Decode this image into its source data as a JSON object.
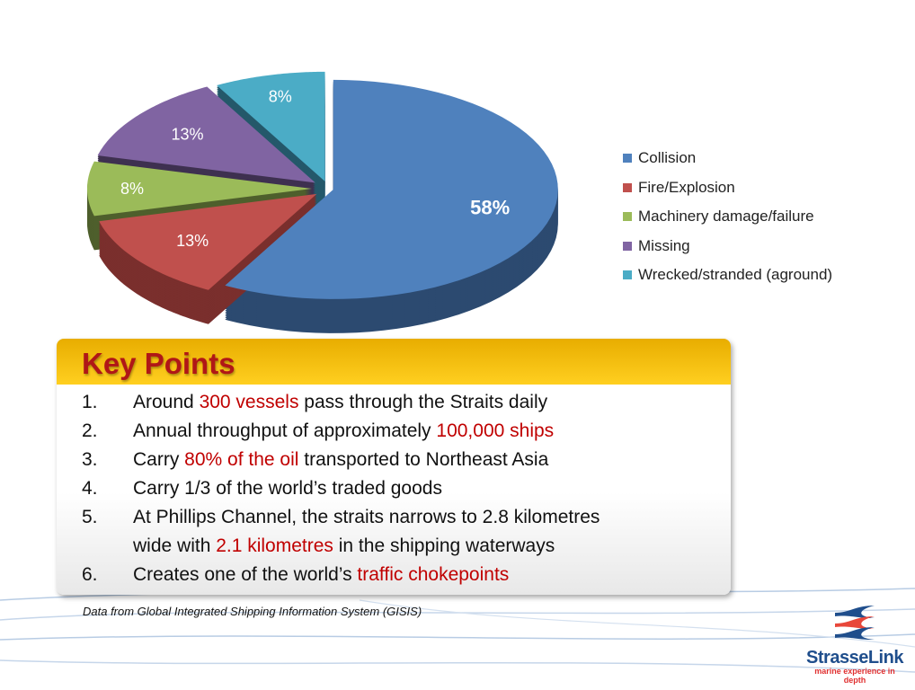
{
  "chart_data": {
    "type": "pie",
    "style": "3d-exploded",
    "categories": [
      "Collision",
      "Fire/Explosion",
      "Machinery damage/failure",
      "Missing",
      "Wrecked/stranded (aground)"
    ],
    "values": [
      58,
      13,
      8,
      13,
      8
    ],
    "labels": [
      "58%",
      "13%",
      "8%",
      "13%",
      "8%"
    ],
    "colors": [
      "#4f81bd",
      "#c0504d",
      "#9bbb59",
      "#8064a2",
      "#4bacc6"
    ],
    "side_colors": [
      "#2c4a70",
      "#7a2f2d",
      "#4e5f2c",
      "#3e3050",
      "#24586a"
    ],
    "legend_position": "right"
  },
  "key_points": {
    "title": "Key Points",
    "items": [
      {
        "num": "1.",
        "parts": [
          {
            "t": "Around "
          },
          {
            "t": "300 vessels",
            "hl": true
          },
          {
            "t": " pass through the Straits daily"
          }
        ]
      },
      {
        "num": "2.",
        "parts": [
          {
            "t": "Annual throughput of approximately "
          },
          {
            "t": "100,000 ships",
            "hl": true
          }
        ]
      },
      {
        "num": "3.",
        "parts": [
          {
            "t": "Carry "
          },
          {
            "t": "80% of the oil",
            "hl": true
          },
          {
            "t": " transported to Northeast Asia"
          }
        ]
      },
      {
        "num": "4.",
        "parts": [
          {
            "t": "Carry 1/3 of the world’s traded goods"
          }
        ]
      },
      {
        "num": "5.",
        "parts": [
          {
            "t": "At Phillips Channel, the straits narrows to 2.8 kilometres"
          }
        ]
      },
      {
        "num": "",
        "parts": [
          {
            "t": "wide with "
          },
          {
            "t": "2.1 kilometres",
            "hl": true
          },
          {
            "t": " in the shipping waterways"
          }
        ]
      },
      {
        "num": "6.",
        "parts": [
          {
            "t": "Creates one of the world’s "
          },
          {
            "t": "traffic chokepoints",
            "hl": true
          }
        ]
      }
    ]
  },
  "footnote": "Data from Global Integrated Shipping Information System (GISIS)",
  "logo": {
    "name": "StrasseLink",
    "tagline": "marine experience in depth"
  }
}
